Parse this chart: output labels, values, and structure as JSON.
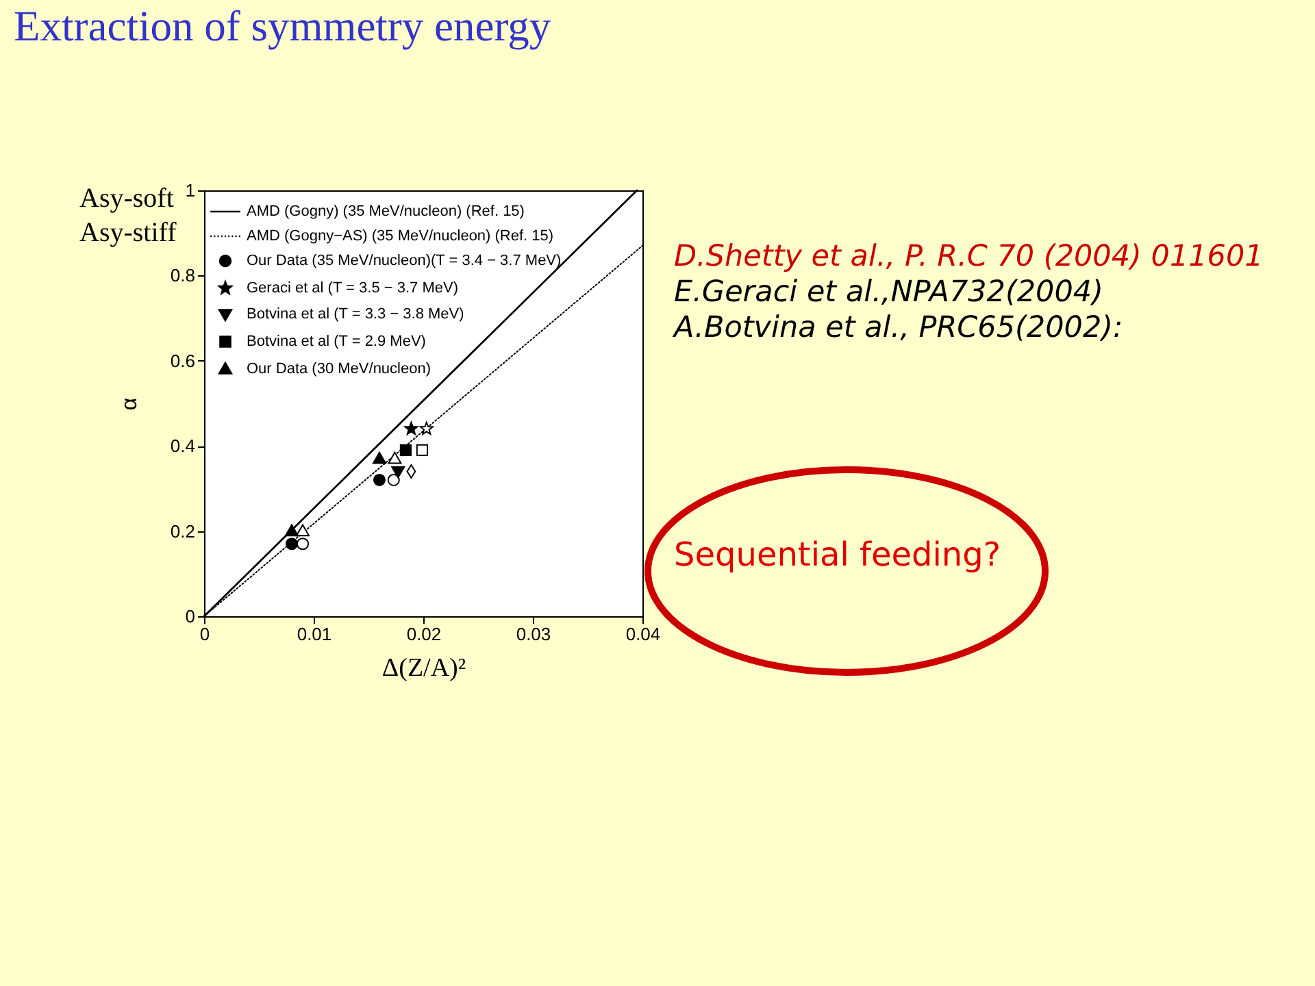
{
  "chart_data": {
    "type": "scatter",
    "title": "Extraction of symmetry energy",
    "xlabel": "Δ(Z/A)²",
    "ylabel": "α",
    "xlim": [
      0,
      0.04
    ],
    "xticks": [
      0,
      0.01,
      0.02,
      0.03,
      0.04
    ],
    "ylim": [
      0,
      1
    ],
    "yticks": [
      0,
      0.2,
      0.4,
      0.6,
      0.8,
      1
    ],
    "legend": "top left",
    "series": [
      {
        "name": "AMD (Gogny) (35 MeV/nucleon) (Ref. 15)",
        "type": "line",
        "color": "#000000",
        "line_style": "solid",
        "x": [
          0,
          0.0395
        ],
        "values": [
          0,
          1
        ]
      },
      {
        "name": "AMD (Gogny−AS) (35 MeV/nucleon) (Ref. 15)",
        "type": "line",
        "color": "#000000",
        "line_style": "dotted",
        "x": [
          0,
          0.04
        ],
        "values": [
          0,
          0.87
        ]
      },
      {
        "name": "Our Data (35 MeV/nucleon)(T = 3.4 − 3.7 MeV)",
        "marker": "circle",
        "color": "#000000",
        "x": [
          0.008,
          0.016
        ],
        "values": [
          0.17,
          0.32
        ]
      },
      {
        "marker": "circle",
        "color": "#ffffff",
        "x": [
          0.009,
          0.0173
        ],
        "values": [
          0.17,
          0.32
        ]
      },
      {
        "name": "Geraci et al (T = 3.5 − 3.7 MeV)",
        "marker": "star",
        "color": "#000000",
        "x": [
          0.0189
        ],
        "values": [
          0.44
        ]
      },
      {
        "marker": "star",
        "color": "#ffffff",
        "x": [
          0.0203
        ],
        "values": [
          0.44
        ]
      },
      {
        "name": "Botvina et al (T = 3.3 − 3.8 MeV)",
        "marker": "triangle-down",
        "color": "#000000",
        "x": [
          0.0177
        ],
        "values": [
          0.34
        ]
      },
      {
        "marker": "diamond",
        "color": "#ffffff",
        "x": [
          0.0189
        ],
        "values": [
          0.34
        ]
      },
      {
        "name": "Botvina et al (T = 2.9 MeV)",
        "marker": "square",
        "color": "#000000",
        "x": [
          0.0184
        ],
        "values": [
          0.39
        ]
      },
      {
        "marker": "square",
        "color": "#ffffff",
        "x": [
          0.0199
        ],
        "values": [
          0.39
        ]
      },
      {
        "name": "Our Data (30 MeV/nucleon)",
        "marker": "triangle",
        "color": "#000000",
        "x": [
          0.008,
          0.016
        ],
        "values": [
          0.2,
          0.37
        ]
      },
      {
        "marker": "triangle",
        "color": "#ffffff",
        "x": [
          0.009,
          0.0174
        ],
        "values": [
          0.2,
          0.37
        ]
      }
    ],
    "annotations": [
      "Asy-soft",
      "Asy-stiff",
      "D.Shetty et al., P. R.C 70 (2004) 011601",
      "E.Geraci et al.,NPA732(2004)",
      "A.Botvina et al., PRC65(2002):",
      "Sequential feeding?"
    ]
  }
}
